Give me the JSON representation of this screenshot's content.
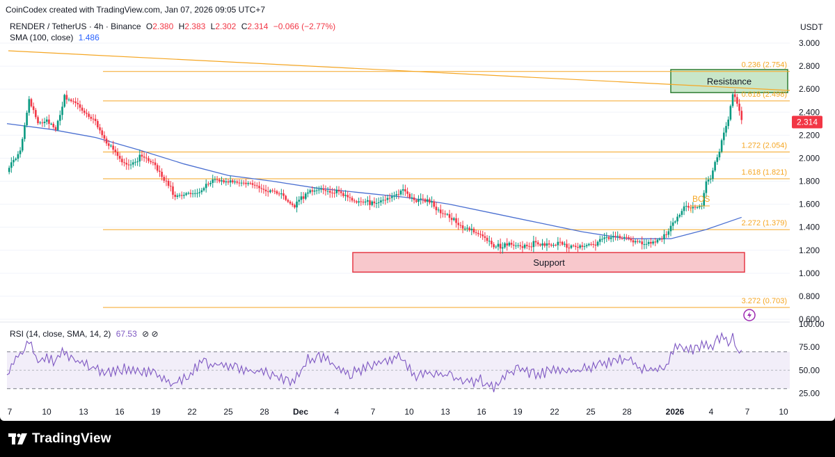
{
  "attribution": "CoinCodex created with TradingView.com, Jan 07, 2026 09:05 UTC+7",
  "symbol": {
    "name": "RENDER / TetherUS · 4h · Binance",
    "o_label": "O",
    "o": "2.380",
    "h_label": "H",
    "h": "2.383",
    "l_label": "L",
    "l": "2.302",
    "c_label": "C",
    "c": "2.314",
    "change": "−0.066 (−2.77%)"
  },
  "sma": {
    "label": "SMA (100, close)",
    "value": "1.486"
  },
  "rsi": {
    "label": "RSI (14, close, SMA, 14, 2)",
    "value": "67.53",
    "icons": "⊘ ⊘"
  },
  "currency": "USDT",
  "last_price": "2.314",
  "brand": "TradingView",
  "colors": {
    "up": "#089981",
    "down": "#f23645",
    "sma": "#4a6fd1",
    "fib": "#f5a623",
    "rsi": "#7e57c2",
    "resistance_fill": "#c8e6c9",
    "support_fill": "#f8c8cc"
  },
  "chart_data": {
    "type": "line",
    "price_axis": {
      "ylim": [
        0.6,
        3.0
      ],
      "ticks": [
        "3.000",
        "2.800",
        "2.600",
        "2.400",
        "2.200",
        "2.000",
        "1.800",
        "1.600",
        "1.400",
        "1.200",
        "1.000",
        "0.800",
        "0.600"
      ]
    },
    "rsi_axis": {
      "ylim": [
        20,
        100
      ],
      "ticks": [
        "100.00",
        "75.00",
        "50.00",
        "25.00"
      ],
      "bands": [
        70,
        30
      ],
      "midline": 50
    },
    "x_ticks": [
      "7",
      "10",
      "13",
      "16",
      "19",
      "22",
      "25",
      "28",
      "Dec",
      "4",
      "7",
      "10",
      "13",
      "16",
      "19",
      "22",
      "25",
      "28",
      "2026",
      "4",
      "7",
      "10"
    ],
    "fib_levels": [
      {
        "label": "0.236 (2.754)",
        "value": 2.754
      },
      {
        "label": "0.618 (2.498)",
        "value": 2.498
      },
      {
        "label": "1.272 (2.054)",
        "value": 2.054
      },
      {
        "label": "1.618 (1.821)",
        "value": 1.821
      },
      {
        "label": "2.272 (1.379)",
        "value": 1.379
      },
      {
        "label": "3.272 (0.703)",
        "value": 0.703
      }
    ],
    "zones": [
      {
        "label": "Resistance",
        "low": 2.57,
        "high": 2.77
      },
      {
        "label": "Support",
        "low": 1.01,
        "high": 1.18
      }
    ],
    "annotation": "BOS",
    "price_series": [
      [
        0,
        1.88
      ],
      [
        3,
        2.05
      ],
      [
        5,
        2.5
      ],
      [
        7,
        2.3
      ],
      [
        9,
        2.35
      ],
      [
        11,
        2.25
      ],
      [
        13,
        2.55
      ],
      [
        15,
        2.48
      ],
      [
        17,
        2.4
      ],
      [
        20,
        2.3
      ],
      [
        22,
        2.15
      ],
      [
        24,
        2.1
      ],
      [
        26,
        1.98
      ],
      [
        28,
        1.97
      ],
      [
        30,
        2.0
      ],
      [
        33,
        1.95
      ],
      [
        35,
        1.82
      ],
      [
        38,
        1.68
      ],
      [
        41,
        1.7
      ],
      [
        44,
        1.73
      ],
      [
        47,
        1.8
      ],
      [
        50,
        1.78
      ],
      [
        53,
        1.8
      ],
      [
        56,
        1.78
      ],
      [
        59,
        1.73
      ],
      [
        62,
        1.67
      ],
      [
        65,
        1.57
      ],
      [
        68,
        1.72
      ],
      [
        71,
        1.75
      ],
      [
        74,
        1.72
      ],
      [
        77,
        1.64
      ],
      [
        80,
        1.6
      ],
      [
        83,
        1.63
      ],
      [
        86,
        1.67
      ],
      [
        89,
        1.72
      ],
      [
        92,
        1.62
      ],
      [
        95,
        1.62
      ],
      [
        98,
        1.55
      ],
      [
        101,
        1.48
      ],
      [
        104,
        1.38
      ],
      [
        107,
        1.32
      ],
      [
        110,
        1.22
      ],
      [
        113,
        1.27
      ],
      [
        116,
        1.25
      ],
      [
        119,
        1.25
      ],
      [
        122,
        1.23
      ],
      [
        125,
        1.25
      ],
      [
        128,
        1.24
      ],
      [
        131,
        1.25
      ],
      [
        134,
        1.28
      ],
      [
        137,
        1.3
      ],
      [
        140,
        1.3
      ],
      [
        143,
        1.28
      ],
      [
        146,
        1.28
      ],
      [
        149,
        1.32
      ],
      [
        151,
        1.45
      ],
      [
        153,
        1.56
      ],
      [
        155,
        1.55
      ],
      [
        157,
        1.6
      ],
      [
        158,
        1.82
      ],
      [
        159,
        1.84
      ],
      [
        160,
        1.97
      ],
      [
        161,
        2.07
      ],
      [
        162,
        2.25
      ],
      [
        163,
        2.35
      ],
      [
        164,
        2.55
      ],
      [
        165,
        2.46
      ],
      [
        166,
        2.31
      ]
    ],
    "sma_series": [
      [
        0,
        2.3
      ],
      [
        10,
        2.25
      ],
      [
        20,
        2.18
      ],
      [
        30,
        2.07
      ],
      [
        40,
        1.95
      ],
      [
        50,
        1.85
      ],
      [
        60,
        1.8
      ],
      [
        70,
        1.74
      ],
      [
        80,
        1.7
      ],
      [
        90,
        1.66
      ],
      [
        100,
        1.6
      ],
      [
        110,
        1.52
      ],
      [
        120,
        1.44
      ],
      [
        130,
        1.36
      ],
      [
        140,
        1.3
      ],
      [
        150,
        1.3
      ],
      [
        158,
        1.38
      ],
      [
        166,
        1.486
      ]
    ],
    "rsi_series": [
      [
        0,
        45
      ],
      [
        3,
        68
      ],
      [
        5,
        80
      ],
      [
        7,
        60
      ],
      [
        9,
        65
      ],
      [
        11,
        58
      ],
      [
        13,
        72
      ],
      [
        15,
        60
      ],
      [
        18,
        55
      ],
      [
        21,
        50
      ],
      [
        24,
        48
      ],
      [
        27,
        52
      ],
      [
        30,
        46
      ],
      [
        33,
        50
      ],
      [
        35,
        40
      ],
      [
        38,
        35
      ],
      [
        41,
        45
      ],
      [
        44,
        58
      ],
      [
        47,
        56
      ],
      [
        50,
        55
      ],
      [
        53,
        52
      ],
      [
        56,
        50
      ],
      [
        59,
        46
      ],
      [
        62,
        42
      ],
      [
        65,
        38
      ],
      [
        68,
        62
      ],
      [
        71,
        64
      ],
      [
        74,
        55
      ],
      [
        77,
        46
      ],
      [
        80,
        50
      ],
      [
        83,
        56
      ],
      [
        86,
        60
      ],
      [
        89,
        66
      ],
      [
        92,
        44
      ],
      [
        95,
        48
      ],
      [
        98,
        46
      ],
      [
        101,
        42
      ],
      [
        104,
        36
      ],
      [
        107,
        40
      ],
      [
        110,
        32
      ],
      [
        113,
        48
      ],
      [
        116,
        50
      ],
      [
        119,
        46
      ],
      [
        122,
        48
      ],
      [
        125,
        50
      ],
      [
        128,
        48
      ],
      [
        131,
        52
      ],
      [
        134,
        55
      ],
      [
        137,
        60
      ],
      [
        140,
        62
      ],
      [
        143,
        52
      ],
      [
        146,
        50
      ],
      [
        149,
        55
      ],
      [
        151,
        78
      ],
      [
        153,
        74
      ],
      [
        155,
        72
      ],
      [
        157,
        76
      ],
      [
        158,
        80
      ],
      [
        159,
        72
      ],
      [
        160,
        82
      ],
      [
        161,
        84
      ],
      [
        162,
        86
      ],
      [
        163,
        82
      ],
      [
        164,
        90
      ],
      [
        165,
        72
      ],
      [
        166,
        67.53
      ]
    ]
  }
}
